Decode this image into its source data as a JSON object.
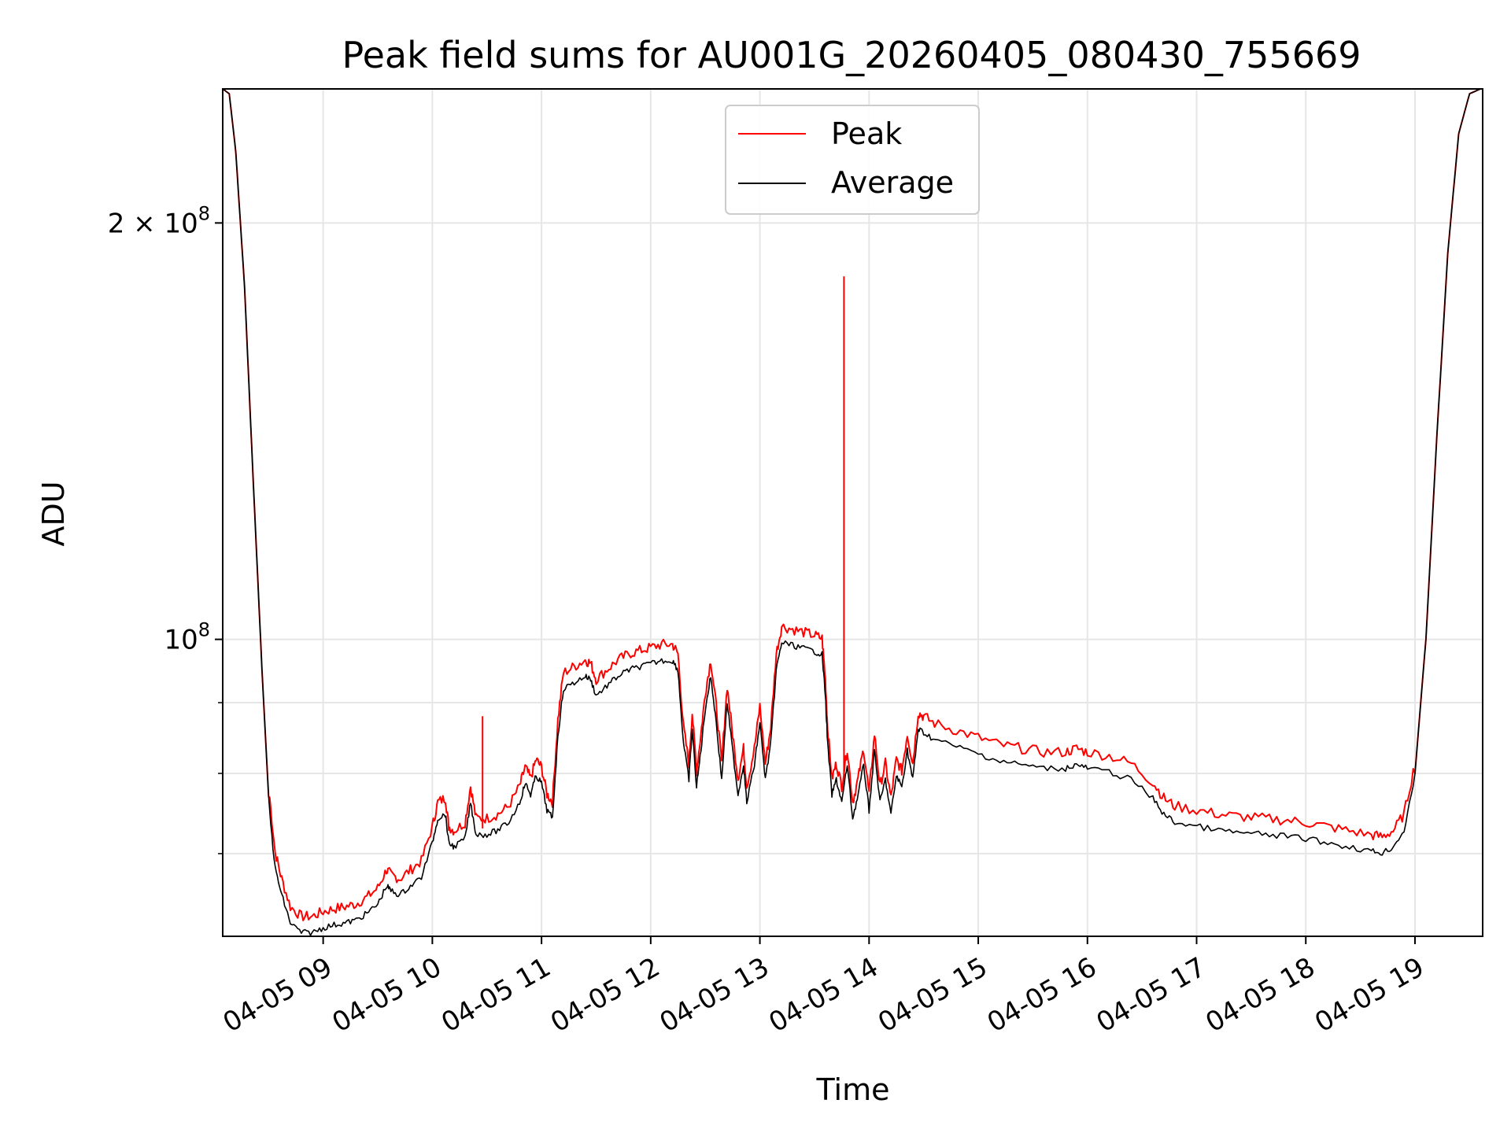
{
  "chart_data": {
    "type": "line",
    "title": "Peak field sums for AU001G_20260405_080430_755669",
    "xlabel": "Time",
    "ylabel": "ADU",
    "y_scale": "log",
    "xlim_hours": [
      8.08,
      19.62
    ],
    "ylim": [
      61000000,
      250000000
    ],
    "grid": true,
    "legend_placement": "upper-center",
    "x_ticks": [
      {
        "hour": 9,
        "label": "04-05 09"
      },
      {
        "hour": 10,
        "label": "04-05 10"
      },
      {
        "hour": 11,
        "label": "04-05 11"
      },
      {
        "hour": 12,
        "label": "04-05 12"
      },
      {
        "hour": 13,
        "label": "04-05 13"
      },
      {
        "hour": 14,
        "label": "04-05 14"
      },
      {
        "hour": 15,
        "label": "04-05 15"
      },
      {
        "hour": 16,
        "label": "04-05 16"
      },
      {
        "hour": 17,
        "label": "04-05 17"
      },
      {
        "hour": 18,
        "label": "04-05 18"
      },
      {
        "hour": 19,
        "label": "04-05 19"
      }
    ],
    "y_major_ticks": [
      {
        "value": 100000000,
        "base": "10",
        "exp": "8",
        "mantissa": ""
      },
      {
        "value": 200000000,
        "base": "10",
        "exp": "8",
        "mantissa": "2 × "
      }
    ],
    "y_minor_ticks": [
      70000000,
      80000000,
      90000000
    ],
    "series": [
      {
        "name": "Peak",
        "color": "#ff0000",
        "spikes": [
          {
            "hour": 10.46,
            "value": 88000000
          },
          {
            "hour": 13.77,
            "value": 183000000
          }
        ]
      },
      {
        "name": "Average",
        "color": "#000000",
        "points": [
          [
            8.08,
            250000000
          ],
          [
            8.14,
            248000000
          ],
          [
            8.2,
            225000000
          ],
          [
            8.28,
            180000000
          ],
          [
            8.36,
            130000000
          ],
          [
            8.44,
            95000000
          ],
          [
            8.5,
            77000000
          ],
          [
            8.56,
            69000000
          ],
          [
            8.62,
            66000000
          ],
          [
            8.7,
            63000000
          ],
          [
            8.8,
            62000000
          ],
          [
            8.9,
            62000000
          ],
          [
            9.0,
            62500000
          ],
          [
            9.1,
            62800000
          ],
          [
            9.2,
            63000000
          ],
          [
            9.3,
            63300000
          ],
          [
            9.4,
            64000000
          ],
          [
            9.5,
            65000000
          ],
          [
            9.58,
            67000000
          ],
          [
            9.62,
            66500000
          ],
          [
            9.7,
            66000000
          ],
          [
            9.8,
            67000000
          ],
          [
            9.9,
            68000000
          ],
          [
            10.0,
            72000000
          ],
          [
            10.05,
            75000000
          ],
          [
            10.12,
            75500000
          ],
          [
            10.15,
            72000000
          ],
          [
            10.2,
            71500000
          ],
          [
            10.3,
            72500000
          ],
          [
            10.35,
            77000000
          ],
          [
            10.4,
            73000000
          ],
          [
            10.5,
            73000000
          ],
          [
            10.6,
            73500000
          ],
          [
            10.7,
            74500000
          ],
          [
            10.8,
            77000000
          ],
          [
            10.85,
            79500000
          ],
          [
            10.9,
            78000000
          ],
          [
            10.95,
            80500000
          ],
          [
            11.0,
            79500000
          ],
          [
            11.05,
            76000000
          ],
          [
            11.1,
            75000000
          ],
          [
            11.15,
            86000000
          ],
          [
            11.2,
            93000000
          ],
          [
            11.3,
            94000000
          ],
          [
            11.4,
            95000000
          ],
          [
            11.45,
            94500000
          ],
          [
            11.5,
            92000000
          ],
          [
            11.6,
            93500000
          ],
          [
            11.7,
            95000000
          ],
          [
            11.8,
            96000000
          ],
          [
            11.9,
            96500000
          ],
          [
            12.0,
            97000000
          ],
          [
            12.1,
            97500000
          ],
          [
            12.2,
            97500000
          ],
          [
            12.25,
            96000000
          ],
          [
            12.3,
            85000000
          ],
          [
            12.35,
            80000000
          ],
          [
            12.38,
            87000000
          ],
          [
            12.42,
            79000000
          ],
          [
            12.46,
            84000000
          ],
          [
            12.5,
            90000000
          ],
          [
            12.55,
            95000000
          ],
          [
            12.6,
            88000000
          ],
          [
            12.65,
            80000000
          ],
          [
            12.7,
            91000000
          ],
          [
            12.75,
            84000000
          ],
          [
            12.8,
            78000000
          ],
          [
            12.85,
            82000000
          ],
          [
            12.88,
            77000000
          ],
          [
            12.95,
            82000000
          ],
          [
            13.0,
            88000000
          ],
          [
            13.05,
            80000000
          ],
          [
            13.1,
            85000000
          ],
          [
            13.15,
            96000000
          ],
          [
            13.2,
            100500000
          ],
          [
            13.3,
            100000000
          ],
          [
            13.4,
            99500000
          ],
          [
            13.5,
            99000000
          ],
          [
            13.57,
            98500000
          ],
          [
            13.6,
            92000000
          ],
          [
            13.62,
            85000000
          ],
          [
            13.66,
            78000000
          ],
          [
            13.7,
            80000000
          ],
          [
            13.75,
            77000000
          ],
          [
            13.8,
            82000000
          ],
          [
            13.85,
            75000000
          ],
          [
            13.9,
            78000000
          ],
          [
            13.95,
            82000000
          ],
          [
            14.0,
            76000000
          ],
          [
            14.05,
            84000000
          ],
          [
            14.1,
            77000000
          ],
          [
            14.15,
            80000000
          ],
          [
            14.2,
            75500000
          ],
          [
            14.25,
            80500000
          ],
          [
            14.3,
            79000000
          ],
          [
            14.35,
            84000000
          ],
          [
            14.4,
            80000000
          ],
          [
            14.45,
            87000000
          ],
          [
            14.5,
            86500000
          ],
          [
            14.6,
            85500000
          ],
          [
            14.8,
            84500000
          ],
          [
            15.0,
            83500000
          ],
          [
            15.2,
            82500000
          ],
          [
            15.4,
            82000000
          ],
          [
            15.6,
            81500000
          ],
          [
            15.8,
            81500000
          ],
          [
            15.9,
            82000000
          ],
          [
            16.0,
            81500000
          ],
          [
            16.2,
            81000000
          ],
          [
            16.4,
            80000000
          ],
          [
            16.6,
            77500000
          ],
          [
            16.7,
            75500000
          ],
          [
            16.8,
            74500000
          ],
          [
            17.0,
            74000000
          ],
          [
            17.2,
            73500000
          ],
          [
            17.4,
            73200000
          ],
          [
            17.6,
            73000000
          ],
          [
            17.8,
            72800000
          ],
          [
            18.0,
            72500000
          ],
          [
            18.2,
            72000000
          ],
          [
            18.4,
            71500000
          ],
          [
            18.6,
            71000000
          ],
          [
            18.7,
            70800000
          ],
          [
            18.8,
            71500000
          ],
          [
            18.9,
            73500000
          ],
          [
            19.0,
            80000000
          ],
          [
            19.1,
            100000000
          ],
          [
            19.2,
            140000000
          ],
          [
            19.3,
            190000000
          ],
          [
            19.4,
            232000000
          ],
          [
            19.5,
            248000000
          ],
          [
            19.6,
            250000000
          ]
        ]
      }
    ]
  }
}
